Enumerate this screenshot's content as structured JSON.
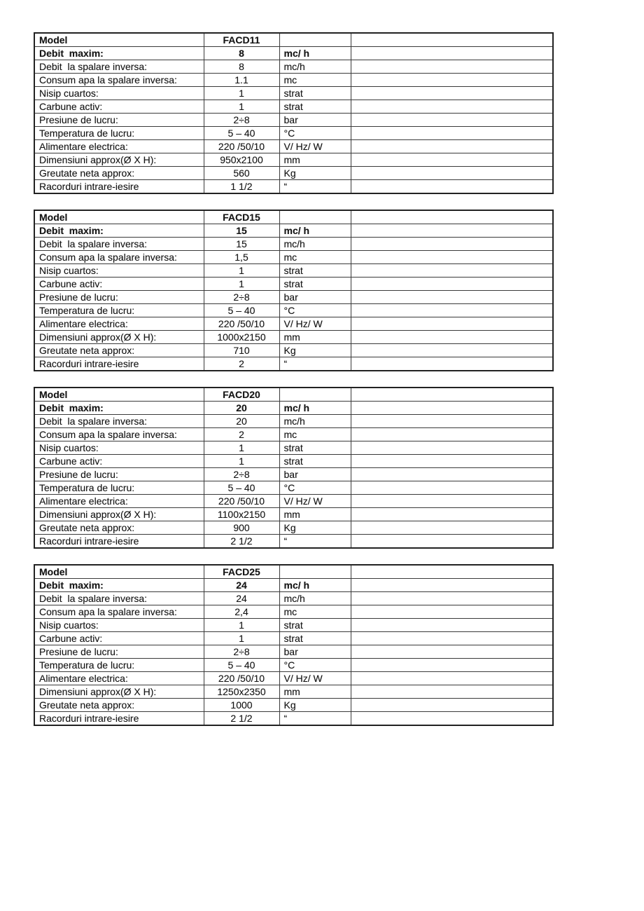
{
  "document": {
    "type": "scanned-specification-sheet",
    "background_color": "#ffffff",
    "text_color": "#151515",
    "border_color": "#3a3a3a"
  },
  "tables": [
    {
      "id": "FACD11",
      "rows": [
        {
          "label": "Model",
          "value": "FACD11",
          "unit": ""
        },
        {
          "label": "Debit  maxim:",
          "value": "8",
          "unit": "mc/ h"
        },
        {
          "label": "Debit  la spalare inversa:",
          "value": "8",
          "unit": "mc/h"
        },
        {
          "label": "Consum apa la spalare inversa:",
          "value": "1.1",
          "unit": "mc"
        },
        {
          "label": "Nisip cuartos:",
          "value": "1",
          "unit": "strat"
        },
        {
          "label": "Carbune activ:",
          "value": "1",
          "unit": "strat"
        },
        {
          "label": "Presiune de lucru:",
          "value": "2÷8",
          "unit": "bar"
        },
        {
          "label": "Temperatura de lucru:",
          "value": "5 – 40",
          "unit": "°C"
        },
        {
          "label": "Alimentare electrica:",
          "value": "220 /50/10",
          "unit": "V/ Hz/ W"
        },
        {
          "label": "Dimensiuni approx(Ø X H):",
          "value": "950x2100",
          "unit": "mm"
        },
        {
          "label": "Greutate neta approx:",
          "value": "560",
          "unit": "Kg"
        },
        {
          "label": "Racorduri intrare-iesire",
          "value": "1 1/2",
          "unit": "“"
        }
      ]
    },
    {
      "id": "FACD15",
      "rows": [
        {
          "label": "Model",
          "value": "FACD15",
          "unit": ""
        },
        {
          "label": "Debit  maxim:",
          "value": "15",
          "unit": "mc/ h"
        },
        {
          "label": "Debit  la spalare inversa:",
          "value": "15",
          "unit": "mc/h"
        },
        {
          "label": "Consum apa la spalare inversa:",
          "value": "1,5",
          "unit": "mc"
        },
        {
          "label": "Nisip cuartos:",
          "value": "1",
          "unit": "strat"
        },
        {
          "label": "Carbune activ:",
          "value": "1",
          "unit": "strat"
        },
        {
          "label": "Presiune de lucru:",
          "value": "2÷8",
          "unit": "bar"
        },
        {
          "label": "Temperatura de lucru:",
          "value": "5 – 40",
          "unit": "°C"
        },
        {
          "label": "Alimentare electrica:",
          "value": "220 /50/10",
          "unit": "V/ Hz/ W"
        },
        {
          "label": "Dimensiuni approx(Ø X H):",
          "value": "1000x2150",
          "unit": "mm"
        },
        {
          "label": "Greutate neta approx:",
          "value": "710",
          "unit": "Kg"
        },
        {
          "label": "Racorduri intrare-iesire",
          "value": "2",
          "unit": "“"
        }
      ]
    },
    {
      "id": "FACD20",
      "rows": [
        {
          "label": "Model",
          "value": "FACD20",
          "unit": ""
        },
        {
          "label": "Debit  maxim:",
          "value": "20",
          "unit": "mc/ h"
        },
        {
          "label": "Debit  la spalare inversa:",
          "value": "20",
          "unit": "mc/h"
        },
        {
          "label": "Consum apa la spalare inversa:",
          "value": "2",
          "unit": "mc"
        },
        {
          "label": "Nisip cuartos:",
          "value": "1",
          "unit": "strat"
        },
        {
          "label": "Carbune activ:",
          "value": "1",
          "unit": "strat"
        },
        {
          "label": "Presiune de lucru:",
          "value": "2÷8",
          "unit": "bar"
        },
        {
          "label": "Temperatura de lucru:",
          "value": "5 – 40",
          "unit": "°C"
        },
        {
          "label": "Alimentare electrica:",
          "value": "220 /50/10",
          "unit": "V/ Hz/ W"
        },
        {
          "label": "Dimensiuni approx(Ø X H):",
          "value": "1100x2150",
          "unit": "mm"
        },
        {
          "label": "Greutate neta approx:",
          "value": "900",
          "unit": "Kg"
        },
        {
          "label": "Racorduri intrare-iesire",
          "value": "2 1/2",
          "unit": "“"
        }
      ]
    },
    {
      "id": "FACD25",
      "rows": [
        {
          "label": "Model",
          "value": "FACD25",
          "unit": ""
        },
        {
          "label": "Debit  maxim:",
          "value": "24",
          "unit": "mc/ h"
        },
        {
          "label": "Debit  la spalare inversa:",
          "value": "24",
          "unit": "mc/h"
        },
        {
          "label": "Consum apa la spalare inversa:",
          "value": "2,4",
          "unit": "mc"
        },
        {
          "label": "Nisip cuartos:",
          "value": "1",
          "unit": "strat"
        },
        {
          "label": "Carbune activ:",
          "value": "1",
          "unit": "strat"
        },
        {
          "label": "Presiune de lucru:",
          "value": "2÷8",
          "unit": "bar"
        },
        {
          "label": "Temperatura de lucru:",
          "value": "5 – 40",
          "unit": "°C"
        },
        {
          "label": "Alimentare electrica:",
          "value": "220 /50/10",
          "unit": "V/ Hz/ W"
        },
        {
          "label": "Dimensiuni approx(Ø X H):",
          "value": "1250x2350",
          "unit": "mm"
        },
        {
          "label": "Greutate neta approx:",
          "value": "1000",
          "unit": "Kg"
        },
        {
          "label": "Racorduri intrare-iesire",
          "value": "2 1/2",
          "unit": "“"
        }
      ]
    }
  ]
}
